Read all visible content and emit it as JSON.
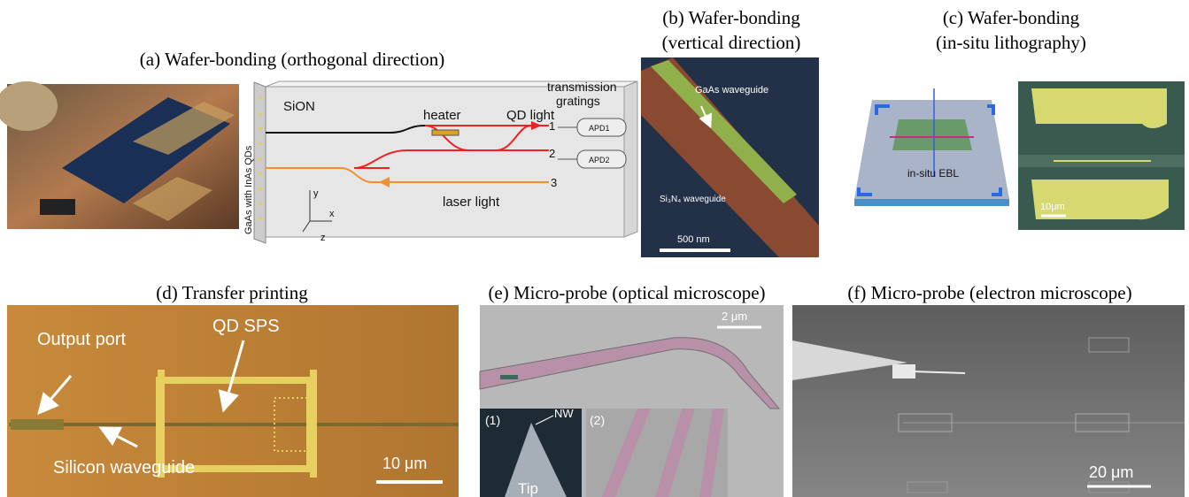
{
  "panels": [
    {
      "title": [
        "(a) Wafer-bonding (orthogonal direction)"
      ],
      "labels": [
        "GaAs with InAs QDs",
        "SiON",
        "heater",
        "QD light",
        "transmission",
        "gratings",
        "1",
        "2",
        "3",
        "APD1",
        "APD2",
        "laser light",
        "y",
        "x",
        "z"
      ]
    },
    {
      "title": [
        "(b) Wafer-bonding",
        "(vertical direction)"
      ],
      "labels": [
        "GaAs waveguide",
        "Si₃N₄ waveguide",
        "500 nm"
      ]
    },
    {
      "title": [
        "(c) Wafer-bonding",
        "(in-situ lithography)"
      ],
      "labels": [
        "in-situ EBL",
        "10μm"
      ]
    },
    {
      "title": [
        "(d) Transfer printing"
      ],
      "labels": [
        "Output port",
        "QD SPS",
        "Silicon waveguide",
        "10 μm"
      ]
    },
    {
      "title": [
        "(e) Micro-probe (optical microscope)"
      ],
      "labels": [
        "2 μm",
        "(1)",
        "NW",
        "Tip",
        "(2)"
      ]
    },
    {
      "title": [
        "(f) Micro-probe (electron microscope)"
      ],
      "labels": [
        "20 μm"
      ]
    }
  ]
}
